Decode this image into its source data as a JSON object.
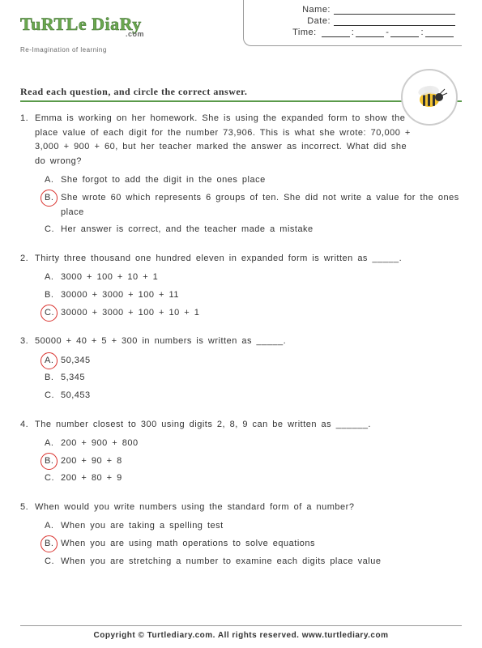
{
  "logo": {
    "text": "TuRTLe DiaRy",
    "suffix": ".com",
    "tagline": "Re-Imagination of learning"
  },
  "info": {
    "name": "Name:",
    "date": "Date:",
    "time": "Time:"
  },
  "instruction": "Read each question, and circle the correct answer.",
  "questions": [
    {
      "num": "1.",
      "text": "Emma is working on her homework. She is using the expanded form to show the place value of each digit for the number 73,906. This is what she wrote: 70,000 + 3,000 + 900 + 60, but her teacher marked the answer as incorrect. What did she do wrong?",
      "options": [
        {
          "l": "A.",
          "t": "She forgot to add the digit in the ones place",
          "c": false
        },
        {
          "l": "B.",
          "t": "She wrote 60 which represents 6 groups of ten. She did not write a value for the ones place",
          "c": true
        },
        {
          "l": "C.",
          "t": "Her answer is correct, and the teacher made a mistake",
          "c": false
        }
      ]
    },
    {
      "num": "2.",
      "text": "Thirty three thousand one hundred eleven in expanded form is written as _____.",
      "options": [
        {
          "l": "A.",
          "t": "3000 + 100 + 10 + 1",
          "c": false
        },
        {
          "l": "B.",
          "t": "30000 + 3000 + 100 + 11",
          "c": false
        },
        {
          "l": "C.",
          "t": "30000 + 3000 + 100 + 10 + 1",
          "c": true
        }
      ]
    },
    {
      "num": "3.",
      "text": "50000 + 40 + 5 + 300 in numbers is written as _____.",
      "options": [
        {
          "l": "A.",
          "t": "50,345",
          "c": true
        },
        {
          "l": "B.",
          "t": "5,345",
          "c": false
        },
        {
          "l": "C.",
          "t": "50,453",
          "c": false
        }
      ]
    },
    {
      "num": "4.",
      "text": "The number closest to 300 using digits 2, 8, 9 can be written as ______.",
      "options": [
        {
          "l": "A.",
          "t": "200 + 900 + 800",
          "c": false
        },
        {
          "l": "B.",
          "t": "200 + 90 + 8",
          "c": true
        },
        {
          "l": "C.",
          "t": "200 + 80 + 9",
          "c": false
        }
      ]
    },
    {
      "num": "5.",
      "text": "When would you write numbers using the standard form of a number?",
      "options": [
        {
          "l": "A.",
          "t": "When you are taking a spelling test",
          "c": false
        },
        {
          "l": "B.",
          "t": "When you are using math operations to solve equations",
          "c": true
        },
        {
          "l": "C.",
          "t": "When you are stretching a number to examine each digits place value",
          "c": false
        }
      ]
    }
  ],
  "footer": "Copyright © Turtlediary.com. All rights reserved. www.turtlediary.com"
}
